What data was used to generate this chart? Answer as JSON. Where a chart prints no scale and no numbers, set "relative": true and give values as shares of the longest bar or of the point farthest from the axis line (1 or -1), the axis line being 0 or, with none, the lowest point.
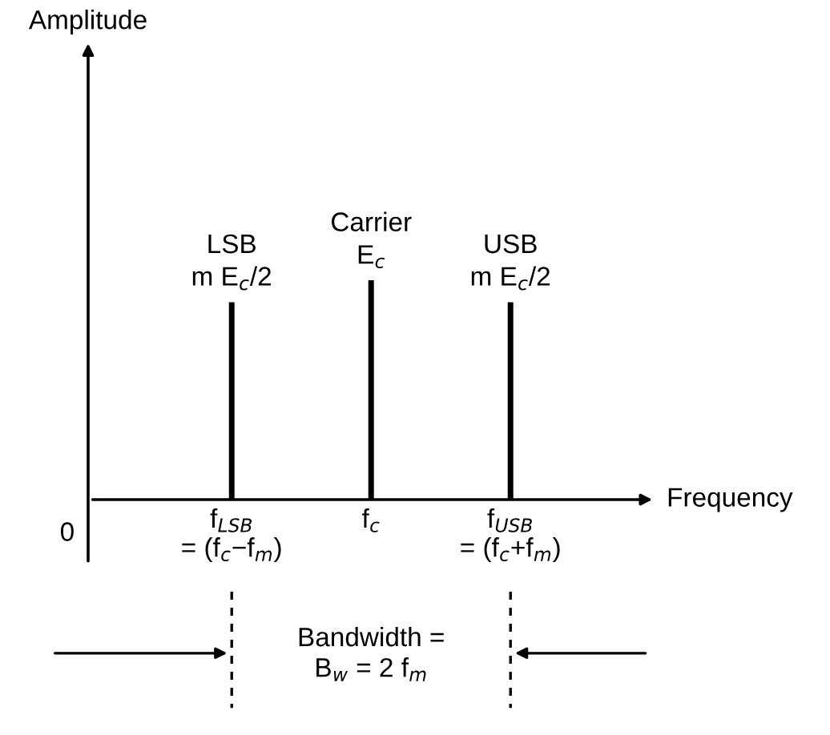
{
  "chart_data": {
    "type": "bar",
    "relative": true,
    "xlabel": "Frequency",
    "categories": [
      "f$_{LSB}$\n= (f$_{c}$−f$_{m}$)",
      "f$_{c}$",
      "f$_{USB}$\n= (f$_{c}$+f$_{m}$)"
    ],
    "values": [
      0.9,
      1,
      0.9
    ],
    "color": "#000000",
    "annotations": [
      "LSB\nm E$_{c}$/2",
      "Carrier\nE$_{c}$",
      "USB\nm E$_{c}$/2",
      "0",
      "Bandwidth =\nB$_{w}$ = 2 f$_{m}$",
      "Amplitude"
    ]
  }
}
